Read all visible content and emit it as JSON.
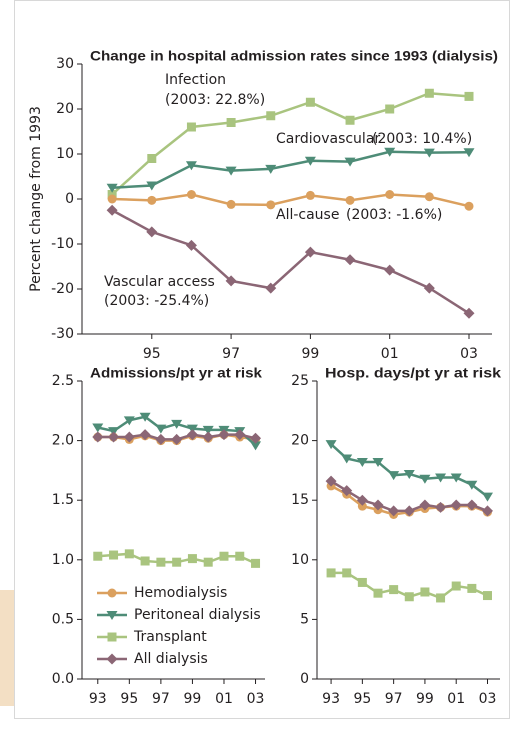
{
  "chart_data": [
    {
      "type": "line",
      "title": "Change in hospital admission rates since 1993 (dialysis)",
      "y_label": "Percent change from 1993",
      "x": [
        1994,
        1995,
        1996,
        1997,
        1998,
        1999,
        2000,
        2001,
        2002,
        2003
      ],
      "xlim": [
        1993.24,
        2003.58
      ],
      "xticks": [
        {
          "value": 1995,
          "label": "95"
        },
        {
          "value": 1997,
          "label": "97"
        },
        {
          "value": 1999,
          "label": "99"
        },
        {
          "value": 2001,
          "label": "01"
        },
        {
          "value": 2003,
          "label": "03"
        }
      ],
      "ylim": [
        -30,
        30
      ],
      "yticks": [
        -30,
        -20,
        -10,
        0,
        10,
        20,
        30
      ],
      "series": [
        {
          "name": "Infection",
          "note": "(2003: 22.8%)",
          "color": "#a9c47f",
          "marker": "square",
          "values": [
            1,
            9,
            16,
            17,
            18.5,
            21.5,
            17.5,
            20,
            23.5,
            22.8
          ]
        },
        {
          "name": "Cardiovascular",
          "note": "(2003: 10.4%)",
          "color": "#4e8c77",
          "marker": "triangle-down",
          "values": [
            2.5,
            3,
            7.5,
            6.3,
            6.7,
            8.5,
            8.3,
            10.5,
            10.3,
            10.4
          ]
        },
        {
          "name": "All-cause",
          "note": "(2003: -1.6%)",
          "color": "#dba05e",
          "marker": "circle",
          "values": [
            0,
            -0.3,
            1,
            -1.2,
            -1.3,
            0.8,
            -0.3,
            1,
            0.5,
            -1.6
          ]
        },
        {
          "name": "Vascular access",
          "note": "(2003: -25.4%)",
          "color": "#8b6675",
          "marker": "diamond",
          "values": [
            -2.5,
            -7.3,
            -10.3,
            -18.2,
            -19.8,
            -11.8,
            -13.5,
            -15.8,
            -19.8,
            -25.4
          ]
        }
      ]
    },
    {
      "type": "line",
      "title": "Admissions/pt yr at risk",
      "legend": "lower left",
      "x": [
        1993,
        1994,
        1995,
        1996,
        1997,
        1998,
        1999,
        2000,
        2001,
        2002,
        2003
      ],
      "xlim": [
        1992,
        2003.6
      ],
      "xticks": [
        {
          "value": 1993,
          "label": "93"
        },
        {
          "value": 1995,
          "label": "95"
        },
        {
          "value": 1997,
          "label": "97"
        },
        {
          "value": 1999,
          "label": "99"
        },
        {
          "value": 2001,
          "label": "01"
        },
        {
          "value": 2003,
          "label": "03"
        }
      ],
      "ylim": [
        0,
        2.5
      ],
      "yticks": [
        {
          "value": 0,
          "label": "0.0"
        },
        0.5,
        {
          "value": 1,
          "label": "1.0"
        },
        1.5,
        {
          "value": 2,
          "label": "2.0"
        },
        2.5
      ],
      "series": [
        {
          "name": "Hemodialysis",
          "color": "#dba05e",
          "marker": "circle",
          "values": [
            2.03,
            2.03,
            2.01,
            2.04,
            2.0,
            2.0,
            2.04,
            2.02,
            2.05,
            2.03,
            2.01
          ]
        },
        {
          "name": "Peritoneal dialysis",
          "color": "#4e8c77",
          "marker": "triangle-down",
          "values": [
            2.11,
            2.08,
            2.17,
            2.2,
            2.1,
            2.14,
            2.1,
            2.09,
            2.09,
            2.08,
            1.96
          ]
        },
        {
          "name": "Transplant",
          "color": "#a9c47f",
          "marker": "square",
          "values": [
            1.03,
            1.04,
            1.05,
            0.99,
            0.98,
            0.98,
            1.01,
            0.98,
            1.03,
            1.03,
            0.97
          ]
        },
        {
          "name": "All dialysis",
          "color": "#8b6675",
          "marker": "diamond",
          "values": [
            2.03,
            2.03,
            2.03,
            2.05,
            2.01,
            2.01,
            2.05,
            2.03,
            2.05,
            2.05,
            2.02
          ]
        }
      ]
    },
    {
      "type": "line",
      "title": "Hosp. days/pt yr at risk",
      "x": [
        1993,
        1994,
        1995,
        1996,
        1997,
        1998,
        1999,
        2000,
        2001,
        2002,
        2003
      ],
      "xlim": [
        1992.1,
        2003.8
      ],
      "xticks": [
        {
          "value": 1993,
          "label": "93"
        },
        {
          "value": 1995,
          "label": "95"
        },
        {
          "value": 1997,
          "label": "97"
        },
        {
          "value": 1999,
          "label": "99"
        },
        {
          "value": 2001,
          "label": "01"
        },
        {
          "value": 2003,
          "label": "03"
        }
      ],
      "ylim": [
        0,
        25
      ],
      "yticks": [
        0,
        5,
        10,
        15,
        20,
        25
      ],
      "series": [
        {
          "color": "#dba05e",
          "marker": "circle",
          "values": [
            16.2,
            15.5,
            14.5,
            14.2,
            13.8,
            14.0,
            14.3,
            14.4,
            14.5,
            14.5,
            14.0
          ]
        },
        {
          "color": "#4e8c77",
          "marker": "triangle-down",
          "values": [
            19.7,
            18.5,
            18.2,
            18.2,
            17.1,
            17.2,
            16.8,
            16.9,
            16.9,
            16.3,
            15.3
          ]
        },
        {
          "color": "#a9c47f",
          "marker": "square",
          "values": [
            8.9,
            8.9,
            8.1,
            7.2,
            7.5,
            6.9,
            7.3,
            6.8,
            7.8,
            7.6,
            7.0
          ]
        },
        {
          "color": "#8b6675",
          "marker": "diamond",
          "values": [
            16.6,
            15.8,
            15.0,
            14.6,
            14.1,
            14.1,
            14.6,
            14.4,
            14.6,
            14.6,
            14.1
          ]
        }
      ]
    }
  ]
}
